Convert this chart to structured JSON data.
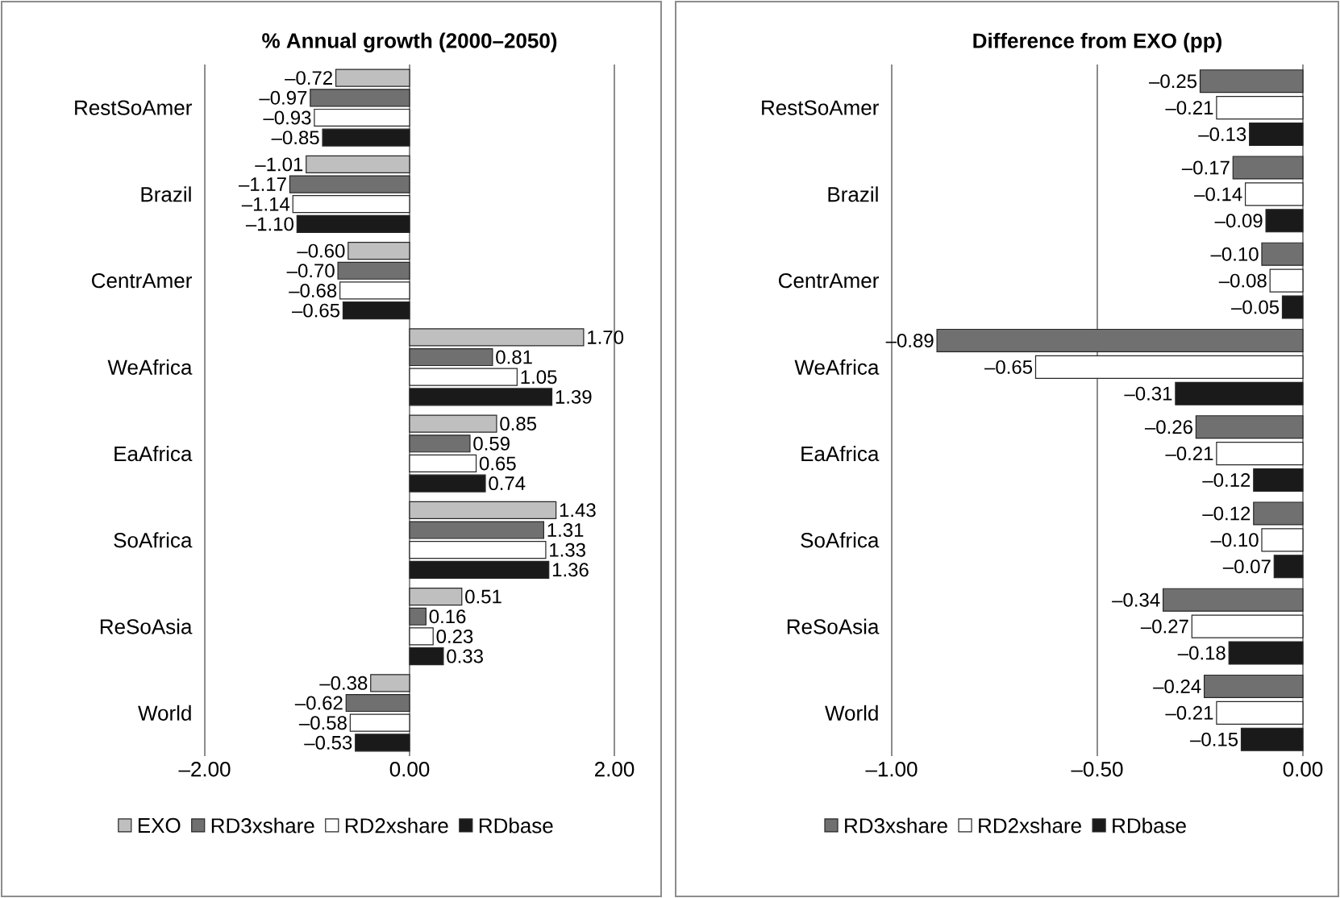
{
  "chart_data": [
    {
      "type": "bar",
      "orientation": "horizontal",
      "title": "% Annual growth (2000–2050)",
      "categories": [
        "RestSoAmer",
        "Brazil",
        "CentrAmer",
        "WeAfrica",
        "EaAfrica",
        "SoAfrica",
        "ReSoAsia",
        "World"
      ],
      "series": [
        {
          "name": "EXO",
          "color": "#bfbfbf",
          "values": [
            -0.72,
            -1.01,
            -0.6,
            1.7,
            0.85,
            1.43,
            0.51,
            -0.38
          ],
          "value_labels": [
            "–0.72",
            "–1.01",
            "–0.60",
            "1.70",
            "0.85",
            "1.43",
            "0.51",
            "–0.38"
          ]
        },
        {
          "name": "RD3xshare",
          "color": "#707070",
          "values": [
            -0.97,
            -1.17,
            -0.7,
            0.81,
            0.59,
            1.31,
            0.16,
            -0.62
          ],
          "value_labels": [
            "–0.97",
            "–1.17",
            "–0.70",
            "0.81",
            "0.59",
            "1.31",
            "0.16",
            "–0.62"
          ]
        },
        {
          "name": "RD2xshare",
          "color": "#ffffff",
          "values": [
            -0.93,
            -1.14,
            -0.68,
            1.05,
            0.65,
            1.33,
            0.23,
            -0.58
          ],
          "value_labels": [
            "–0.93",
            "–1.14",
            "–0.68",
            "1.05",
            "0.65",
            "1.33",
            "0.23",
            "–0.58"
          ]
        },
        {
          "name": "RDbase",
          "color": "#1a1a1a",
          "values": [
            -0.85,
            -1.1,
            -0.65,
            1.39,
            0.74,
            1.36,
            0.33,
            -0.53
          ],
          "value_labels": [
            "–0.85",
            "–1.10",
            "–0.65",
            "1.39",
            "0.74",
            "1.36",
            "0.33",
            "–0.53"
          ]
        }
      ],
      "xlim": [
        -2,
        2
      ],
      "xticks": [
        {
          "value": -2,
          "label": "–2.00"
        },
        {
          "value": 0,
          "label": "0.00"
        },
        {
          "value": 2,
          "label": "2.00"
        }
      ],
      "grid": "x",
      "legend": "bottom"
    },
    {
      "type": "bar",
      "orientation": "horizontal",
      "title": "Difference from EXO (pp)",
      "categories": [
        "RestSoAmer",
        "Brazil",
        "CentrAmer",
        "WeAfrica",
        "EaAfrica",
        "SoAfrica",
        "ReSoAsia",
        "World"
      ],
      "series": [
        {
          "name": "RD3xshare",
          "color": "#707070",
          "values": [
            -0.25,
            -0.17,
            -0.1,
            -0.89,
            -0.26,
            -0.12,
            -0.34,
            -0.24
          ],
          "value_labels": [
            "–0.25",
            "–0.17",
            "–0.10",
            "–0.89",
            "–0.26",
            "–0.12",
            "–0.34",
            "–0.24"
          ]
        },
        {
          "name": "RD2xshare",
          "color": "#ffffff",
          "values": [
            -0.21,
            -0.14,
            -0.08,
            -0.65,
            -0.21,
            -0.1,
            -0.27,
            -0.21
          ],
          "value_labels": [
            "–0.21",
            "–0.14",
            "–0.08",
            "–0.65",
            "–0.21",
            "–0.10",
            "–0.27",
            "–0.21"
          ]
        },
        {
          "name": "RDbase",
          "color": "#1a1a1a",
          "values": [
            -0.13,
            -0.09,
            -0.05,
            -0.31,
            -0.12,
            -0.07,
            -0.18,
            -0.15
          ],
          "value_labels": [
            "–0.13",
            "–0.09",
            "–0.05",
            "–0.31",
            "–0.12",
            "–0.07",
            "–0.18",
            "–0.15"
          ]
        }
      ],
      "xlim": [
        -1,
        0
      ],
      "xticks": [
        {
          "value": -1,
          "label": "–1.00"
        },
        {
          "value": -0.5,
          "label": "–0.50"
        },
        {
          "value": 0,
          "label": "0.00"
        }
      ],
      "grid": "x",
      "legend": "bottom"
    }
  ]
}
